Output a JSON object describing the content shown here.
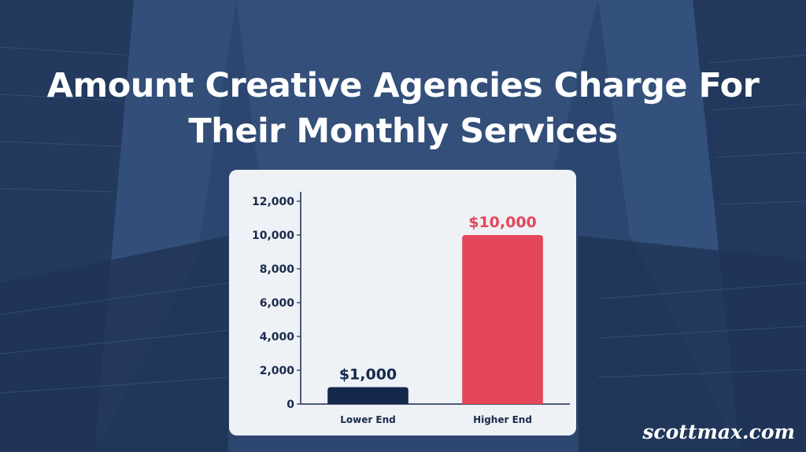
{
  "page": {
    "title_lines": [
      "Amount Creative Agencies Charge For",
      "Their Monthly Services"
    ],
    "brand": "scottmax.com"
  },
  "colors": {
    "background": "#2c4670",
    "card": "#eef1f6",
    "lower_bar": "#14284b",
    "higher_bar": "#e5465a",
    "axis_text": "#1a2a4a"
  },
  "chart_data": {
    "type": "bar",
    "title": "Amount Creative Agencies Charge For Their Monthly Services",
    "xlabel": "",
    "ylabel": "",
    "categories": [
      "Lower End",
      "Higher End"
    ],
    "values": [
      1000,
      10000
    ],
    "data_labels": [
      "$1,000",
      "$10,000"
    ],
    "bar_colors": [
      "#14284b",
      "#e5465a"
    ],
    "ylim": [
      0,
      12000
    ],
    "yticks": [
      0,
      2000,
      4000,
      6000,
      8000,
      10000,
      12000
    ],
    "ytick_labels": [
      "0",
      "2,000",
      "4,000",
      "6,000",
      "8,000",
      "10,000",
      "12,000"
    ],
    "grid": false,
    "legend": "none"
  }
}
